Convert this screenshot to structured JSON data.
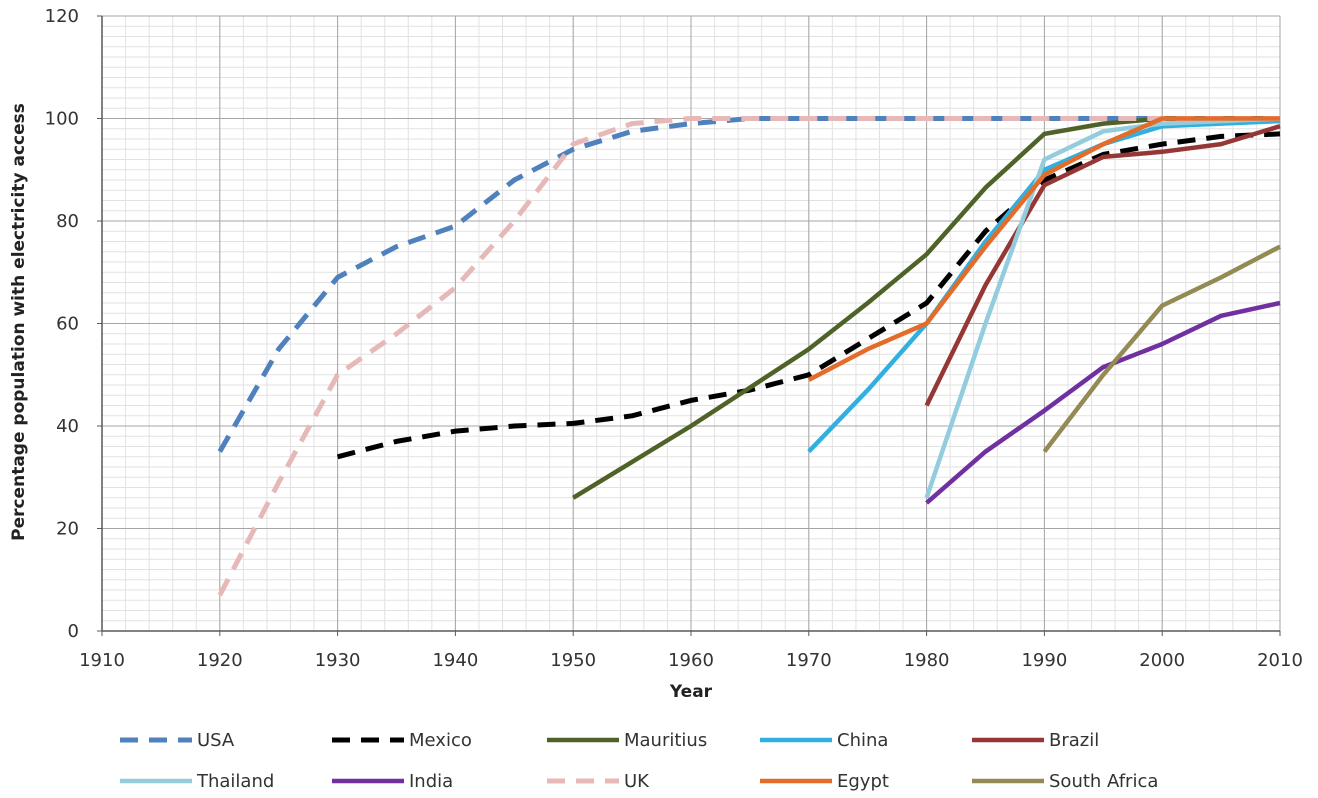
{
  "chart_data": {
    "type": "line",
    "title": "",
    "xlabel": "Year",
    "ylabel": "Percentage population with electricity access",
    "xlim": [
      1910,
      2010
    ],
    "ylim": [
      0,
      120
    ],
    "x_ticks": [
      "1910",
      "1920",
      "1930",
      "1940",
      "1950",
      "1960",
      "1970",
      "1980",
      "1990",
      "2000",
      "2010"
    ],
    "y_ticks": [
      "0",
      "20",
      "40",
      "60",
      "80",
      "100",
      "120"
    ],
    "grid": true,
    "legend_position": "bottom",
    "series": [
      {
        "name": "USA",
        "color": "#4f81bd",
        "dashed": true,
        "points": [
          [
            1920,
            35
          ],
          [
            1925,
            55
          ],
          [
            1930,
            69
          ],
          [
            1935,
            75
          ],
          [
            1940,
            79
          ],
          [
            1945,
            88
          ],
          [
            1950,
            94
          ],
          [
            1955,
            97.5
          ],
          [
            1960,
            99
          ],
          [
            1965,
            100
          ],
          [
            1970,
            100
          ],
          [
            1980,
            100
          ],
          [
            1990,
            100
          ],
          [
            2000,
            100
          ],
          [
            2010,
            100
          ]
        ]
      },
      {
        "name": "Mexico",
        "color": "#000000",
        "dashed": true,
        "points": [
          [
            1930,
            34
          ],
          [
            1935,
            37
          ],
          [
            1940,
            39
          ],
          [
            1945,
            40
          ],
          [
            1950,
            40.5
          ],
          [
            1955,
            42
          ],
          [
            1960,
            45
          ],
          [
            1965,
            47
          ],
          [
            1970,
            50
          ],
          [
            1975,
            57
          ],
          [
            1980,
            64
          ],
          [
            1985,
            78
          ],
          [
            1990,
            88
          ],
          [
            1995,
            93
          ],
          [
            2000,
            95
          ],
          [
            2005,
            96.5
          ],
          [
            2010,
            97
          ]
        ]
      },
      {
        "name": "Mauritius",
        "color": "#4f6228",
        "dashed": false,
        "points": [
          [
            1950,
            26
          ],
          [
            1955,
            33
          ],
          [
            1960,
            40
          ],
          [
            1965,
            47.5
          ],
          [
            1970,
            55
          ],
          [
            1975,
            64
          ],
          [
            1980,
            73.5
          ],
          [
            1985,
            86.5
          ],
          [
            1990,
            97
          ],
          [
            1995,
            99
          ],
          [
            2000,
            100
          ],
          [
            2005,
            100
          ],
          [
            2010,
            100
          ]
        ]
      },
      {
        "name": "China",
        "color": "#31b0e0",
        "dashed": false,
        "points": [
          [
            1970,
            35
          ],
          [
            1975,
            47
          ],
          [
            1980,
            60
          ],
          [
            1985,
            76
          ],
          [
            1990,
            90
          ],
          [
            1995,
            95
          ],
          [
            2000,
            98.5
          ],
          [
            2005,
            99
          ],
          [
            2010,
            99.5
          ]
        ]
      },
      {
        "name": "Brazil",
        "color": "#953735",
        "dashed": false,
        "points": [
          [
            1980,
            44
          ],
          [
            1985,
            67.5
          ],
          [
            1990,
            87
          ],
          [
            1995,
            92.5
          ],
          [
            2000,
            93.5
          ],
          [
            2005,
            95
          ],
          [
            2010,
            98.5
          ]
        ]
      },
      {
        "name": "Thailand",
        "color": "#93cddd",
        "dashed": false,
        "points": [
          [
            1980,
            26
          ],
          [
            1985,
            60
          ],
          [
            1990,
            92
          ],
          [
            1995,
            97.5
          ],
          [
            2000,
            99
          ],
          [
            2005,
            99.5
          ],
          [
            2010,
            100
          ]
        ]
      },
      {
        "name": "India",
        "color": "#7030a0",
        "dashed": false,
        "points": [
          [
            1980,
            25
          ],
          [
            1985,
            35
          ],
          [
            1990,
            43
          ],
          [
            1995,
            51.5
          ],
          [
            2000,
            56
          ],
          [
            2005,
            61.5
          ],
          [
            2010,
            64
          ]
        ]
      },
      {
        "name": "UK",
        "color": "#e6b9b8",
        "dashed": true,
        "points": [
          [
            1920,
            7
          ],
          [
            1925,
            29
          ],
          [
            1930,
            50
          ],
          [
            1935,
            58
          ],
          [
            1940,
            67
          ],
          [
            1945,
            80
          ],
          [
            1950,
            95
          ],
          [
            1955,
            99
          ],
          [
            1960,
            100
          ],
          [
            1970,
            100
          ],
          [
            1980,
            100
          ],
          [
            1990,
            100
          ],
          [
            2000,
            100
          ],
          [
            2010,
            100
          ]
        ]
      },
      {
        "name": "Egypt",
        "color": "#e36c2a",
        "dashed": false,
        "points": [
          [
            1970,
            49
          ],
          [
            1975,
            55
          ],
          [
            1980,
            60
          ],
          [
            1985,
            75
          ],
          [
            1990,
            89
          ],
          [
            1995,
            95
          ],
          [
            2000,
            100
          ],
          [
            2005,
            100
          ],
          [
            2010,
            100
          ]
        ]
      },
      {
        "name": "South Africa",
        "color": "#948a54",
        "dashed": false,
        "points": [
          [
            1990,
            35
          ],
          [
            1995,
            50
          ],
          [
            2000,
            63.5
          ],
          [
            2005,
            69
          ],
          [
            2010,
            75
          ]
        ]
      }
    ]
  }
}
